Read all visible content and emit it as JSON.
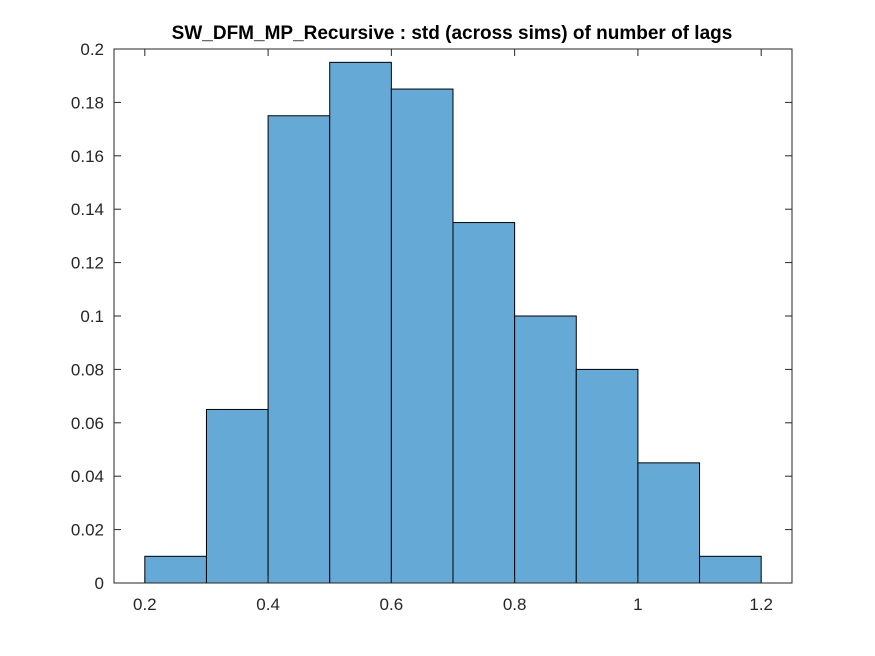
{
  "chart_data": {
    "type": "bar",
    "title": "SW_DFM_MP_Recursive : std (across sims) of number of lags",
    "xlabel": "",
    "ylabel": "",
    "bin_edges": [
      0.2,
      0.3,
      0.4,
      0.5,
      0.6,
      0.7,
      0.8,
      0.9,
      1.0,
      1.1,
      1.2
    ],
    "values": [
      0.01,
      0.065,
      0.175,
      0.195,
      0.185,
      0.135,
      0.1,
      0.08,
      0.045,
      0.01
    ],
    "xlim": [
      0.15,
      1.25
    ],
    "ylim": [
      0,
      0.2
    ],
    "xticks": [
      "0.2",
      "0.4",
      "0.6",
      "0.8",
      "1",
      "1.2"
    ],
    "yticks": [
      "0",
      "0.02",
      "0.04",
      "0.06",
      "0.08",
      "0.1",
      "0.12",
      "0.14",
      "0.16",
      "0.18",
      "0.2"
    ],
    "grid": false,
    "bar_color": "#65a9d7",
    "edge_color": "#000000"
  }
}
